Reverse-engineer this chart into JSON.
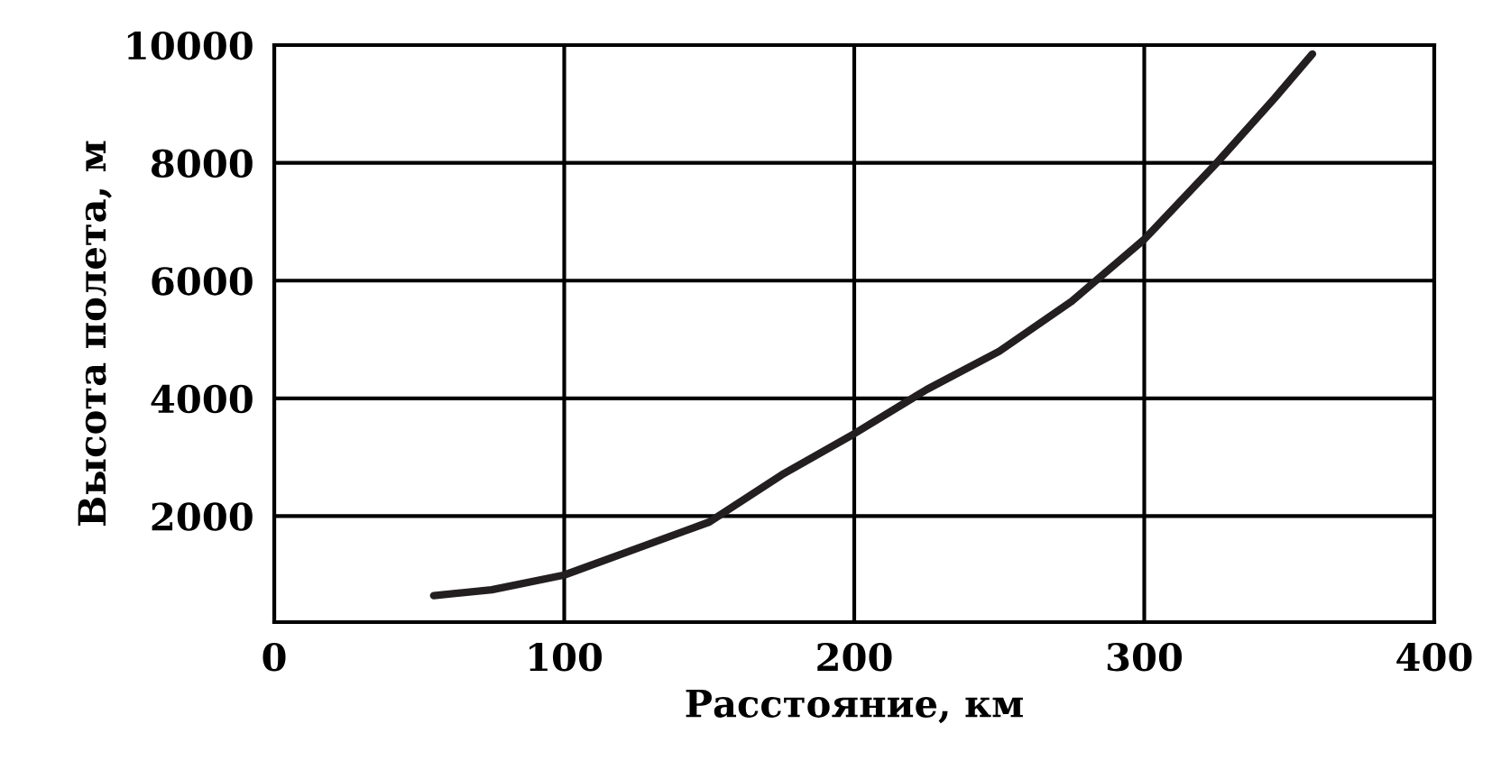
{
  "chart_data": {
    "type": "line",
    "xlabel": "Расстояние, км",
    "ylabel": "Высота полета, м",
    "series": [
      {
        "color": "#231f20",
        "x": [
          55,
          75,
          100,
          125,
          150,
          175,
          200,
          225,
          250,
          275,
          300,
          325,
          345,
          358
        ],
        "values": [
          650,
          750,
          1000,
          1450,
          1900,
          2700,
          3400,
          4150,
          4800,
          5650,
          6700,
          8000,
          9100,
          9850
        ]
      }
    ],
    "xlim": [
      0,
      400
    ],
    "xticks": [
      0,
      100,
      200,
      300,
      400
    ],
    "ylim": [
      200,
      10000
    ],
    "yticks": [
      2000,
      4000,
      6000,
      8000,
      10000
    ],
    "grid": true,
    "line_style": "solid",
    "marker": "none"
  }
}
